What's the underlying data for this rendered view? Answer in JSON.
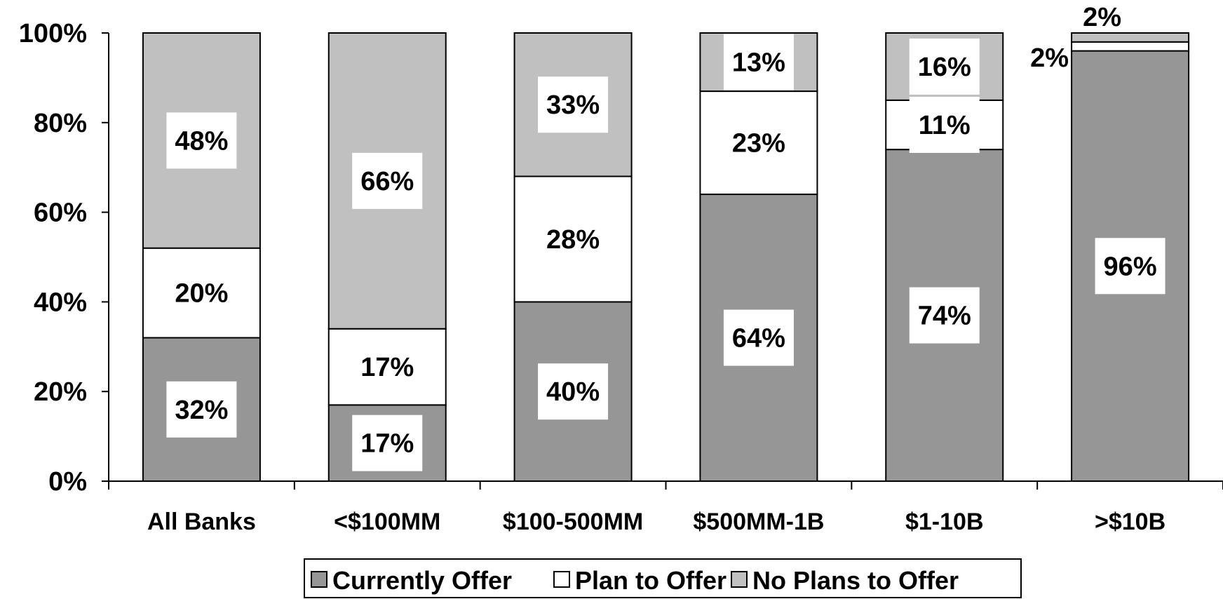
{
  "chart_data": {
    "type": "bar",
    "stacked": true,
    "categories": [
      "All Banks",
      "<$100MM",
      "$100-500MM",
      "$500MM-1B",
      "$1-10B",
      ">$10B"
    ],
    "series": [
      {
        "name": "Currently Offer",
        "values": [
          32,
          17,
          40,
          64,
          74,
          96
        ]
      },
      {
        "name": "Plan to Offer",
        "values": [
          20,
          17,
          28,
          23,
          11,
          2
        ]
      },
      {
        "name": "No Plans to Offer",
        "values": [
          48,
          66,
          33,
          13,
          16,
          2
        ]
      }
    ],
    "value_labels": [
      [
        "32%",
        "17%",
        "40%",
        "64%",
        "74%",
        "96%"
      ],
      [
        "20%",
        "17%",
        "28%",
        "23%",
        "11%",
        "2%"
      ],
      [
        "48%",
        "66%",
        "33%",
        "13%",
        "16%",
        "2%"
      ]
    ],
    "y_ticks": [
      "0%",
      "20%",
      "40%",
      "60%",
      "80%",
      "100%"
    ],
    "y_tick_values": [
      0,
      20,
      40,
      60,
      80,
      100
    ],
    "ylim": [
      0,
      100
    ],
    "title": "",
    "xlabel": "",
    "ylabel": "",
    "legend_position": "bottom",
    "grid": false,
    "colors": {
      "Currently Offer": "#969696",
      "Plan to Offer": "#ffffff",
      "No Plans to Offer": "#c0c0c0"
    }
  }
}
